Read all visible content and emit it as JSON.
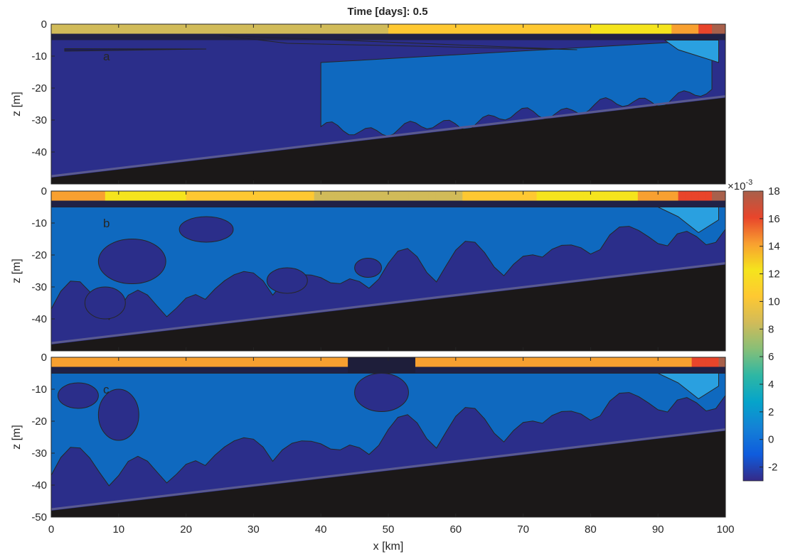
{
  "chart_data": {
    "type": "heatmap",
    "title": "Time [days]: 0.5",
    "xlabel": "x [km]",
    "ylabel": "z [m]",
    "xlim": [
      0,
      100
    ],
    "xticks": [
      "0",
      "10",
      "20",
      "30",
      "40",
      "50",
      "60",
      "70",
      "80",
      "90",
      "100"
    ],
    "panels": [
      {
        "label": "a",
        "ylim": [
          -50,
          0
        ],
        "yticks": [
          "0",
          "-10",
          "-20",
          "-30",
          "-40"
        ],
        "bottom_depth_left": -48,
        "bottom_depth_right": -23,
        "surface_layer": {
          "depth": -3,
          "profile_x": [
            0,
            20,
            40,
            60,
            80,
            90,
            95,
            98,
            100
          ],
          "profile_value": [
            8,
            8.5,
            9,
            9.5,
            11,
            12,
            14,
            16,
            18
          ]
        },
        "contours": [
          {
            "region": "tongue",
            "x": [
              2,
              23
            ],
            "z": -8,
            "value": 0
          },
          {
            "region": "interior",
            "x_range": [
              40,
              98
            ],
            "z_range": [
              -33,
              -5
            ],
            "value": 2
          }
        ]
      },
      {
        "label": "b",
        "ylim": [
          -50,
          0
        ],
        "yticks": [
          "0",
          "-10",
          "-20",
          "-30",
          "-40"
        ],
        "bottom_depth_left": -48,
        "bottom_depth_right": -23,
        "surface_layer": {
          "depth": -3,
          "profile_x": [
            0,
            20,
            35,
            45,
            50,
            55,
            65,
            80,
            90,
            97,
            100
          ],
          "profile_value": [
            14,
            11,
            10,
            8,
            7.5,
            8,
            10,
            12,
            13,
            16,
            17
          ]
        },
        "contours": [
          {
            "region": "interior",
            "x_range": [
              0,
              100
            ],
            "z_range": [
              -45,
              -5
            ],
            "value": 2
          }
        ]
      },
      {
        "label": "c",
        "ylim": [
          -50,
          0
        ],
        "yticks": [
          "0",
          "-10",
          "-20",
          "-30",
          "-40",
          "-50"
        ],
        "bottom_depth_left": -48,
        "bottom_depth_right": -23,
        "surface_layer": {
          "depth": -3,
          "gap_x": [
            44,
            54
          ],
          "profile_x": [
            0,
            20,
            40,
            54,
            70,
            90,
            97,
            100
          ],
          "profile_value": [
            14,
            13.5,
            13,
            14,
            14,
            13.5,
            15,
            17
          ]
        },
        "contours": [
          {
            "region": "interior",
            "x_range": [
              0,
              100
            ],
            "z_range": [
              -40,
              -5
            ],
            "value": 2
          }
        ]
      }
    ],
    "colorbar": {
      "min": -3,
      "max": 18,
      "ticks": [
        "18",
        "16",
        "14",
        "12",
        "10",
        "8",
        "6",
        "4",
        "2",
        "0",
        "-2"
      ],
      "multiplier_base": "×10",
      "multiplier_exp": "-3",
      "colors": [
        "#352a87",
        "#0f5cdd",
        "#1481d6",
        "#06a4ca",
        "#2eb7a4",
        "#87bf77",
        "#d1bb59",
        "#fec832",
        "#f5e41d",
        "#f8a030",
        "#e8452b",
        "#a8604b"
      ]
    },
    "colors": {
      "background": "#2b2e8a",
      "interior": "#0f69bf",
      "light_blue": "#2aa0e0",
      "edge": "#5a5a90",
      "bathymetry": "#1b1818",
      "contour_line": "#262626"
    }
  }
}
